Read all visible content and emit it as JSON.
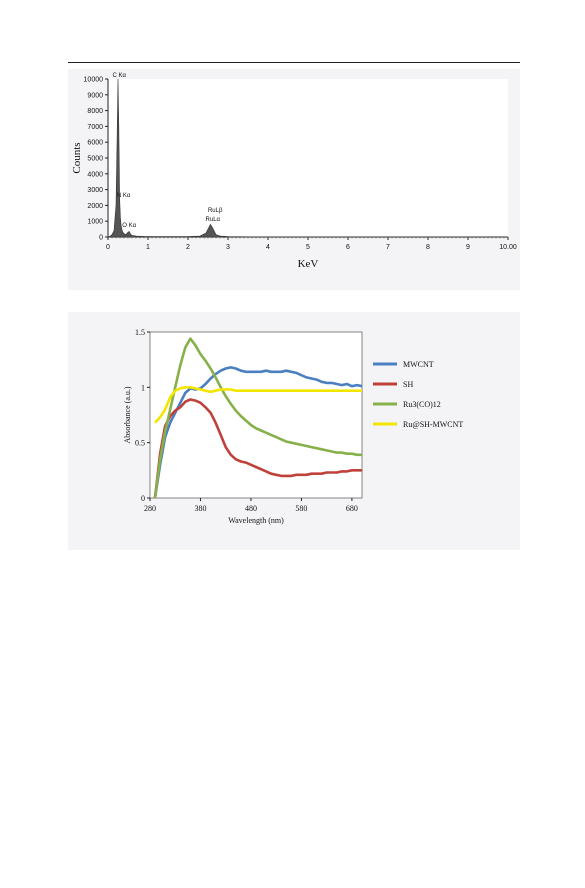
{
  "chart_data": [
    {
      "type": "area",
      "xlabel": "KeV",
      "ylabel": "Counts",
      "xlim": [
        0,
        10
      ],
      "ylim": [
        0,
        10000
      ],
      "x_ticks": [
        "0",
        "1",
        "2",
        "3",
        "4",
        "5",
        "6",
        "7",
        "8",
        "9",
        "10.00"
      ],
      "y_ticks": [
        "0",
        "1000",
        "2000",
        "3000",
        "4000",
        "5000",
        "6000",
        "7000",
        "8000",
        "9000",
        "10000"
      ],
      "grid": false,
      "series": [
        {
          "x": [
            0.0,
            0.05,
            0.1,
            0.15,
            0.2,
            0.22,
            0.25,
            0.27,
            0.29,
            0.31,
            0.33,
            0.36,
            0.4,
            0.45,
            0.5,
            0.53,
            0.56,
            0.6,
            0.7,
            0.9,
            1.2,
            1.6,
            2.0,
            2.3,
            2.45,
            2.52,
            2.56,
            2.6,
            2.65,
            2.7,
            2.8,
            3.0,
            3.5,
            5.0,
            7.0,
            10.0
          ],
          "y": [
            0,
            50,
            150,
            400,
            2000,
            5000,
            10000,
            7000,
            2500,
            1200,
            700,
            350,
            200,
            160,
            300,
            350,
            200,
            100,
            60,
            40,
            30,
            25,
            30,
            60,
            250,
            600,
            800,
            650,
            400,
            150,
            60,
            30,
            15,
            10,
            5,
            0
          ]
        }
      ],
      "annotations": [
        {
          "text": "C Kα",
          "x": 0.28,
          "y": 10000
        },
        {
          "text": "N Kα",
          "x": 0.39,
          "y": 2400
        },
        {
          "text": "O Kα",
          "x": 0.53,
          "y": 500
        },
        {
          "text": "RuLβ",
          "x": 2.68,
          "y": 1450
        },
        {
          "text": "RuLα",
          "x": 2.62,
          "y": 900
        }
      ]
    },
    {
      "type": "line",
      "xlabel": "Wavelength (nm)",
      "ylabel": "Absorbance (a.u.)",
      "xlim": [
        280,
        700
      ],
      "ylim": [
        0,
        1.5
      ],
      "x_ticks": [
        "280",
        "380",
        "480",
        "580",
        "680"
      ],
      "y_ticks": [
        "0",
        "0.5",
        "1",
        "1.5"
      ],
      "grid": false,
      "legend_position": "right",
      "x": [
        290,
        300,
        310,
        320,
        330,
        340,
        350,
        360,
        370,
        380,
        390,
        400,
        410,
        420,
        430,
        440,
        450,
        460,
        470,
        480,
        490,
        500,
        510,
        520,
        530,
        540,
        550,
        560,
        570,
        580,
        590,
        600,
        610,
        620,
        630,
        640,
        650,
        660,
        670,
        680,
        690,
        700
      ],
      "series": [
        {
          "name": "MWCNT",
          "color": "#4a7fc1",
          "values": [
            0.0,
            0.3,
            0.55,
            0.68,
            0.77,
            0.86,
            0.95,
            0.99,
            0.98,
            0.99,
            1.03,
            1.08,
            1.12,
            1.15,
            1.17,
            1.18,
            1.17,
            1.15,
            1.14,
            1.14,
            1.14,
            1.14,
            1.15,
            1.14,
            1.14,
            1.14,
            1.15,
            1.14,
            1.13,
            1.11,
            1.09,
            1.08,
            1.07,
            1.05,
            1.04,
            1.04,
            1.03,
            1.02,
            1.03,
            1.01,
            1.02,
            1.01
          ]
        },
        {
          "name": "SH",
          "color": "#c0403a",
          "values": [
            0.0,
            0.4,
            0.65,
            0.74,
            0.79,
            0.82,
            0.87,
            0.89,
            0.88,
            0.86,
            0.82,
            0.77,
            0.68,
            0.57,
            0.46,
            0.39,
            0.35,
            0.33,
            0.32,
            0.3,
            0.28,
            0.26,
            0.24,
            0.22,
            0.21,
            0.2,
            0.2,
            0.2,
            0.21,
            0.21,
            0.21,
            0.22,
            0.22,
            0.22,
            0.23,
            0.23,
            0.23,
            0.24,
            0.24,
            0.25,
            0.25,
            0.25
          ]
        },
        {
          "name": "Ru3(CO)12",
          "color": "#86b04a",
          "values": [
            0.0,
            0.35,
            0.6,
            0.8,
            1.0,
            1.2,
            1.36,
            1.44,
            1.38,
            1.3,
            1.24,
            1.17,
            1.09,
            1.0,
            0.92,
            0.85,
            0.79,
            0.74,
            0.7,
            0.66,
            0.63,
            0.61,
            0.59,
            0.57,
            0.55,
            0.53,
            0.51,
            0.5,
            0.49,
            0.48,
            0.47,
            0.46,
            0.45,
            0.44,
            0.43,
            0.42,
            0.41,
            0.41,
            0.4,
            0.4,
            0.39,
            0.39
          ]
        },
        {
          "name": "Ru@SH-MWCNT",
          "color": "#f2e600",
          "values": [
            0.68,
            0.73,
            0.8,
            0.91,
            0.97,
            0.99,
            1.0,
            1.0,
            0.99,
            0.98,
            0.97,
            0.96,
            0.97,
            0.98,
            0.98,
            0.98,
            0.97,
            0.97,
            0.97,
            0.97,
            0.97,
            0.97,
            0.97,
            0.97,
            0.97,
            0.97,
            0.97,
            0.97,
            0.97,
            0.97,
            0.97,
            0.97,
            0.97,
            0.97,
            0.97,
            0.97,
            0.97,
            0.97,
            0.97,
            0.97,
            0.97,
            0.97
          ]
        }
      ]
    }
  ]
}
